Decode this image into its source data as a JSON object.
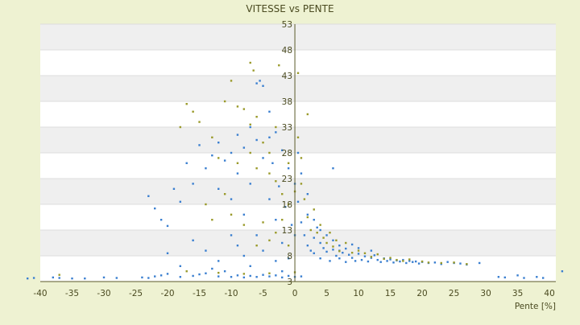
{
  "chart_data": {
    "type": "scatter",
    "title": "VITESSE vs PENTE",
    "xlabel": "Pente [%]",
    "ylabel": "",
    "xlim": [
      -40,
      41
    ],
    "ylim": [
      3,
      53
    ],
    "x_ticks": [
      -40,
      -35,
      -30,
      -25,
      -20,
      -15,
      -10,
      -5,
      0,
      5,
      10,
      15,
      20,
      25,
      30,
      35,
      40
    ],
    "y_ticks": [
      3,
      8,
      13,
      18,
      23,
      28,
      33,
      38,
      43,
      48,
      53
    ],
    "grid": true,
    "legend": "none",
    "series": [
      {
        "color": "#3a7fd0",
        "points": [
          [
            -42,
            3.6
          ],
          [
            -41,
            3.7
          ],
          [
            -38,
            3.8
          ],
          [
            -37,
            3.7
          ],
          [
            -35,
            3.6
          ],
          [
            -33,
            3.6
          ],
          [
            -30,
            3.8
          ],
          [
            -28,
            3.7
          ],
          [
            -24,
            3.8
          ],
          [
            -23,
            3.7
          ],
          [
            -22,
            4.0
          ],
          [
            -21,
            4.2
          ],
          [
            -20,
            4.5
          ],
          [
            -18,
            3.9
          ],
          [
            -16,
            4.1
          ],
          [
            -15,
            4.4
          ],
          [
            -14,
            4.6
          ],
          [
            -12,
            4.0
          ],
          [
            -10,
            3.9
          ],
          [
            -9,
            4.2
          ],
          [
            -8,
            3.8
          ],
          [
            -7,
            4.1
          ],
          [
            -6,
            3.9
          ],
          [
            -5,
            4.3
          ],
          [
            -4,
            4.0
          ],
          [
            -3,
            4.2
          ],
          [
            -2,
            3.8
          ],
          [
            -1,
            4.1
          ],
          [
            0,
            3.9
          ],
          [
            1,
            4.0
          ],
          [
            -23,
            19.6
          ],
          [
            -22,
            17.2
          ],
          [
            -21,
            15.0
          ],
          [
            -20,
            13.8
          ],
          [
            -19,
            21.0
          ],
          [
            -18,
            18.5
          ],
          [
            -17,
            26.0
          ],
          [
            -16,
            22.0
          ],
          [
            -15,
            29.5
          ],
          [
            -14,
            25.0
          ],
          [
            -13,
            27.5
          ],
          [
            -12,
            30.0
          ],
          [
            -12,
            21.0
          ],
          [
            -11,
            26.5
          ],
          [
            -10,
            28.0
          ],
          [
            -10,
            19.0
          ],
          [
            -9,
            31.5
          ],
          [
            -9,
            24.0
          ],
          [
            -8,
            29.0
          ],
          [
            -8,
            16.0
          ],
          [
            -7,
            33.0
          ],
          [
            -7,
            22.0
          ],
          [
            -6,
            30.5
          ],
          [
            -6,
            12.0
          ],
          [
            -5,
            41.0
          ],
          [
            -5,
            27.0
          ],
          [
            -4,
            36.0
          ],
          [
            -4,
            19.0
          ],
          [
            -3,
            32.0
          ],
          [
            -3,
            15.0
          ],
          [
            -2,
            28.5
          ],
          [
            -2,
            10.5
          ],
          [
            -1,
            25.0
          ],
          [
            -1,
            7.5
          ],
          [
            0,
            22.0
          ],
          [
            0,
            12.0
          ],
          [
            -6,
            41.5
          ],
          [
            -5.5,
            42.0
          ],
          [
            -4,
            31.0
          ],
          [
            -3.5,
            26.0
          ],
          [
            -2.5,
            21.5
          ],
          [
            -1.5,
            17.5
          ],
          [
            -0.5,
            14.0
          ],
          [
            0.5,
            18.5
          ],
          [
            1,
            14.5
          ],
          [
            1.5,
            12.0
          ],
          [
            2,
            10.0
          ],
          [
            2,
            16.0
          ],
          [
            2.5,
            9.0
          ],
          [
            3,
            11.5
          ],
          [
            3,
            8.5
          ],
          [
            3.5,
            13.5
          ],
          [
            4,
            10.5
          ],
          [
            4,
            7.5
          ],
          [
            4.5,
            9.5
          ],
          [
            5,
            8.8
          ],
          [
            5,
            12.0
          ],
          [
            5.5,
            7.0
          ],
          [
            6,
            9.2
          ],
          [
            6,
            25.0
          ],
          [
            6.5,
            8.0
          ],
          [
            7,
            10.0
          ],
          [
            7,
            7.5
          ],
          [
            7.5,
            8.6
          ],
          [
            8,
            9.4
          ],
          [
            8,
            6.8
          ],
          [
            8.5,
            8.2
          ],
          [
            9,
            7.6
          ],
          [
            9,
            10.2
          ],
          [
            9.5,
            7.0
          ],
          [
            10,
            8.4
          ],
          [
            10.5,
            7.2
          ],
          [
            11,
            7.9
          ],
          [
            11.5,
            6.9
          ],
          [
            12,
            7.6
          ],
          [
            12.5,
            8.1
          ],
          [
            13,
            7.2
          ],
          [
            13.5,
            6.8
          ],
          [
            14,
            7.5
          ],
          [
            14.5,
            7.0
          ],
          [
            15,
            7.3
          ],
          [
            15.5,
            6.7
          ],
          [
            16,
            7.1
          ],
          [
            16.5,
            6.9
          ],
          [
            17,
            7.2
          ],
          [
            17.5,
            6.6
          ],
          [
            18,
            7.0
          ],
          [
            18.5,
            6.8
          ],
          [
            19,
            6.9
          ],
          [
            19.5,
            6.5
          ],
          [
            20,
            6.8
          ],
          [
            21,
            6.6
          ],
          [
            22,
            6.7
          ],
          [
            23,
            6.4
          ],
          [
            24,
            6.8
          ],
          [
            25,
            6.6
          ],
          [
            26,
            6.5
          ],
          [
            27,
            6.3
          ],
          [
            29,
            6.6
          ],
          [
            32,
            3.9
          ],
          [
            33,
            3.8
          ],
          [
            35,
            4.2
          ],
          [
            36,
            3.7
          ],
          [
            38,
            3.9
          ],
          [
            39,
            3.7
          ],
          [
            42,
            5.0
          ],
          [
            2,
            20.0
          ],
          [
            1,
            24.0
          ],
          [
            0.5,
            28.0
          ],
          [
            3,
            15.0
          ],
          [
            4,
            13.0
          ],
          [
            6,
            11.0
          ],
          [
            7,
            9.0
          ],
          [
            10,
            9.5
          ],
          [
            12,
            9.0
          ],
          [
            -8,
            8.0
          ],
          [
            -9,
            10.0
          ],
          [
            -10,
            12.0
          ],
          [
            -12,
            7.0
          ],
          [
            -14,
            9.0
          ],
          [
            -16,
            11.0
          ],
          [
            -18,
            6.0
          ],
          [
            -20,
            8.5
          ],
          [
            -7,
            6.0
          ],
          [
            -11,
            5.0
          ],
          [
            -13,
            5.5
          ],
          [
            -5,
            9.0
          ],
          [
            -3,
            7.0
          ],
          [
            -2,
            5.0
          ]
        ]
      },
      {
        "color": "#9a9a2a",
        "points": [
          [
            -37,
            4.3
          ],
          [
            -17,
            5.0
          ],
          [
            -12,
            4.7
          ],
          [
            -8,
            4.5
          ],
          [
            -4,
            4.6
          ],
          [
            0,
            4.8
          ],
          [
            -7,
            45.5
          ],
          [
            -6.5,
            44.0
          ],
          [
            -2.5,
            45.0
          ],
          [
            0.5,
            43.5
          ],
          [
            -10,
            42.0
          ],
          [
            -11,
            38.0
          ],
          [
            -9,
            37.0
          ],
          [
            -8,
            36.5
          ],
          [
            -17,
            37.5
          ],
          [
            -16,
            36.0
          ],
          [
            -15,
            34.0
          ],
          [
            -18,
            33.0
          ],
          [
            -13,
            31.0
          ],
          [
            -12,
            27.0
          ],
          [
            -9,
            26.0
          ],
          [
            -7,
            28.0
          ],
          [
            -6,
            25.0
          ],
          [
            -4,
            24.0
          ],
          [
            -3,
            22.5
          ],
          [
            -2,
            20.0
          ],
          [
            -1,
            18.0
          ],
          [
            0,
            20.5
          ],
          [
            1,
            22.0
          ],
          [
            1.5,
            19.0
          ],
          [
            2,
            15.5
          ],
          [
            2,
            35.5
          ],
          [
            2.5,
            13.0
          ],
          [
            3,
            17.0
          ],
          [
            3.5,
            12.5
          ],
          [
            4,
            14.0
          ],
          [
            4.5,
            11.5
          ],
          [
            5,
            10.5
          ],
          [
            5.5,
            12.5
          ],
          [
            6,
            9.8
          ],
          [
            6.5,
            11.0
          ],
          [
            7,
            8.9
          ],
          [
            8,
            10.5
          ],
          [
            9,
            8.6
          ],
          [
            10,
            9.0
          ],
          [
            11,
            8.5
          ],
          [
            12,
            7.8
          ],
          [
            13,
            8.3
          ],
          [
            14,
            7.4
          ],
          [
            15,
            7.6
          ],
          [
            16,
            7.2
          ],
          [
            17,
            7.0
          ],
          [
            18,
            7.3
          ],
          [
            20,
            6.9
          ],
          [
            21,
            6.7
          ],
          [
            23,
            6.6
          ],
          [
            25,
            6.7
          ],
          [
            27,
            6.4
          ],
          [
            -14,
            18.0
          ],
          [
            -13,
            15.0
          ],
          [
            -11,
            20.0
          ],
          [
            -10,
            16.0
          ],
          [
            -8,
            14.0
          ],
          [
            -6,
            10.0
          ],
          [
            -5,
            14.5
          ],
          [
            -4,
            11.0
          ],
          [
            -3,
            12.5
          ],
          [
            -2,
            15.0
          ],
          [
            -1,
            10.0
          ],
          [
            -5,
            30.0
          ],
          [
            -4,
            28.0
          ],
          [
            -3,
            33.0
          ],
          [
            -6,
            35.0
          ],
          [
            -7,
            33.5
          ],
          [
            -1,
            26.0
          ],
          [
            1,
            27.0
          ],
          [
            0.5,
            31.0
          ]
        ]
      }
    ]
  }
}
